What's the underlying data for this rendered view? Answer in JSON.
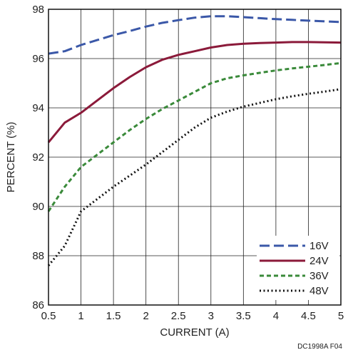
{
  "chart_data": {
    "type": "line",
    "xlabel": "CURRENT (A)",
    "ylabel": "PERCENT (%)",
    "xlim": [
      0.5,
      5
    ],
    "ylim": [
      86,
      98
    ],
    "x_ticks": [
      "0.5",
      "1",
      "1.5",
      "2",
      "2.5",
      "3",
      "3.5",
      "4",
      "4.5",
      "5"
    ],
    "y_ticks": [
      "86",
      "88",
      "90",
      "92",
      "94",
      "96",
      "98"
    ],
    "grid": true,
    "legend_position": "bottom-right",
    "footnote": "DC1998A F04",
    "series": [
      {
        "name": "16V",
        "color": "#3b58a8",
        "dash": "dashed",
        "x": [
          0.5,
          0.75,
          1,
          1.25,
          1.5,
          1.75,
          2,
          2.25,
          2.5,
          2.75,
          3,
          3.25,
          3.5,
          3.75,
          4,
          4.25,
          4.5,
          4.75,
          5
        ],
        "y": [
          96.2,
          96.3,
          96.55,
          96.75,
          96.95,
          97.12,
          97.3,
          97.45,
          97.56,
          97.66,
          97.72,
          97.72,
          97.68,
          97.64,
          97.6,
          97.57,
          97.54,
          97.51,
          97.48
        ]
      },
      {
        "name": "24V",
        "color": "#8b1a3a",
        "dash": "solid",
        "x": [
          0.5,
          0.75,
          1,
          1.25,
          1.5,
          1.75,
          2,
          2.25,
          2.5,
          2.75,
          3,
          3.25,
          3.5,
          3.75,
          4,
          4.25,
          4.5,
          4.75,
          5
        ],
        "y": [
          92.6,
          93.4,
          93.8,
          94.3,
          94.8,
          95.25,
          95.65,
          95.95,
          96.15,
          96.3,
          96.45,
          96.55,
          96.6,
          96.63,
          96.65,
          96.67,
          96.67,
          96.66,
          96.65
        ]
      },
      {
        "name": "36V",
        "color": "#3a8a3a",
        "dash": "dashed-short",
        "x": [
          0.5,
          0.75,
          1,
          1.25,
          1.5,
          1.75,
          2,
          2.25,
          2.5,
          2.75,
          3,
          3.25,
          3.5,
          3.75,
          4,
          4.25,
          4.5,
          4.75,
          5
        ],
        "y": [
          89.8,
          90.8,
          91.6,
          92.1,
          92.6,
          93.1,
          93.55,
          93.95,
          94.3,
          94.65,
          95.0,
          95.2,
          95.32,
          95.42,
          95.52,
          95.6,
          95.67,
          95.74,
          95.82
        ]
      },
      {
        "name": "48V",
        "color": "#111111",
        "dash": "dotted",
        "x": [
          0.5,
          0.75,
          1,
          1.25,
          1.5,
          1.75,
          2,
          2.25,
          2.5,
          2.75,
          3,
          3.25,
          3.5,
          3.75,
          4,
          4.25,
          4.5,
          4.75,
          5
        ],
        "y": [
          87.6,
          88.4,
          89.8,
          90.3,
          90.8,
          91.25,
          91.7,
          92.2,
          92.7,
          93.2,
          93.6,
          93.85,
          94.05,
          94.2,
          94.35,
          94.47,
          94.57,
          94.66,
          94.76
        ]
      }
    ]
  }
}
